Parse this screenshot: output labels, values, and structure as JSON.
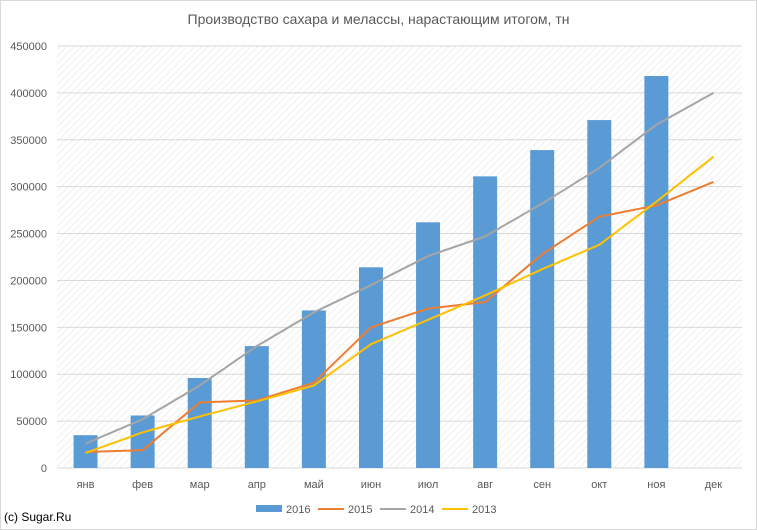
{
  "chart_data": {
    "type": "bar",
    "title": "Производство сахара и мелассы, нарастающим итогом, тн",
    "categories": [
      "янв",
      "фев",
      "мар",
      "апр",
      "май",
      "июн",
      "июл",
      "авг",
      "сен",
      "окт",
      "ноя",
      "дек"
    ],
    "ylim": [
      0,
      450000
    ],
    "yticks": [
      "0",
      "50000",
      "100000",
      "150000",
      "200000",
      "250000",
      "300000",
      "350000",
      "400000",
      "450000"
    ],
    "grid": true,
    "legend_position": "bottom",
    "series": [
      {
        "name": "2016",
        "kind": "bar",
        "color": "#5b9bd5",
        "values": [
          35000,
          56000,
          96000,
          130000,
          168000,
          214000,
          262000,
          311000,
          339000,
          371000,
          418000,
          null
        ]
      },
      {
        "name": "2015",
        "kind": "line",
        "color": "#ed7d31",
        "values": [
          17000,
          19000,
          70000,
          72000,
          91000,
          150000,
          170000,
          177000,
          228000,
          268000,
          280000,
          305000
        ]
      },
      {
        "name": "2014",
        "kind": "line",
        "color": "#a5a5a5",
        "values": [
          26000,
          52000,
          88000,
          130000,
          166000,
          195000,
          226000,
          247000,
          282000,
          320000,
          366000,
          400000
        ]
      },
      {
        "name": "2013",
        "kind": "line",
        "color": "#ffc000",
        "values": [
          16000,
          38000,
          55000,
          71000,
          88000,
          132000,
          158000,
          184000,
          212000,
          238000,
          284000,
          332000
        ]
      }
    ]
  },
  "footer": {
    "copyright": "(c) Sugar.Ru"
  }
}
